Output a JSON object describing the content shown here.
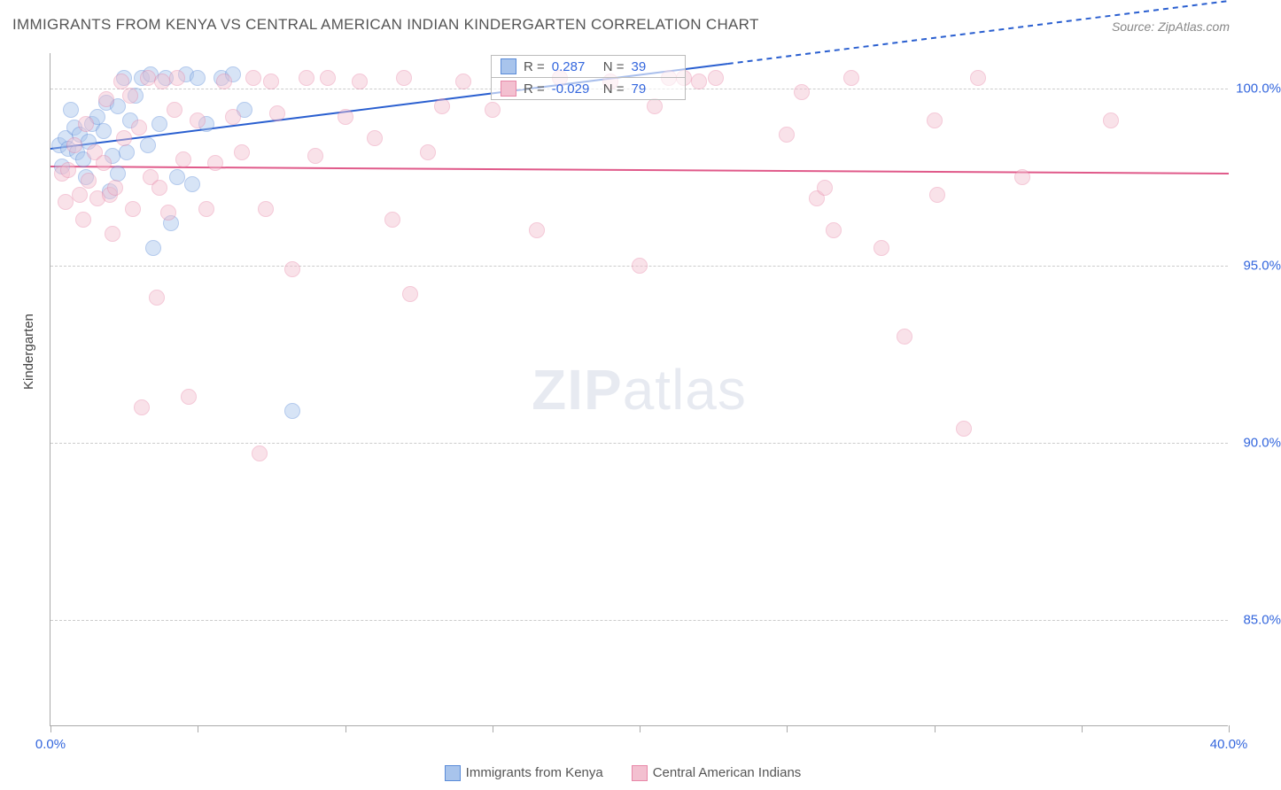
{
  "title": "IMMIGRANTS FROM KENYA VS CENTRAL AMERICAN INDIAN KINDERGARTEN CORRELATION CHART",
  "source": "Source: ZipAtlas.com",
  "ylabel": "Kindergarten",
  "watermark": "ZIPatlas",
  "chart": {
    "type": "scatter",
    "xlim": [
      0,
      40
    ],
    "ylim": [
      82,
      101
    ],
    "x_ticks": [
      0,
      5,
      10,
      15,
      20,
      25,
      30,
      35,
      40
    ],
    "x_tick_labels": {
      "0": "0.0%",
      "40": "40.0%"
    },
    "y_gridlines": [
      85,
      90,
      95,
      100
    ],
    "y_tick_labels": {
      "85": "85.0%",
      "90": "90.0%",
      "95": "95.0%",
      "100": "100.0%"
    },
    "background_color": "#ffffff",
    "grid_color": "#cccccc",
    "axis_color": "#aaaaaa",
    "tick_label_color": "#3366dd",
    "marker_radius": 9,
    "marker_opacity": 0.45,
    "series": [
      {
        "name": "Immigrants from Kenya",
        "color_fill": "#a8c4ec",
        "color_stroke": "#5a8bd8",
        "R": "0.287",
        "N": "39",
        "trend": {
          "x1": 0,
          "y1": 98.3,
          "x2": 23,
          "y2": 100.7,
          "extend_x": 40,
          "color": "#2a5fd0",
          "width": 2
        },
        "points": [
          [
            0.3,
            98.4
          ],
          [
            0.5,
            98.6
          ],
          [
            0.6,
            98.3
          ],
          [
            0.8,
            98.9
          ],
          [
            0.9,
            98.2
          ],
          [
            1.0,
            98.7
          ],
          [
            1.1,
            98.0
          ],
          [
            1.3,
            98.5
          ],
          [
            1.4,
            99.0
          ],
          [
            1.6,
            99.2
          ],
          [
            1.8,
            98.8
          ],
          [
            1.9,
            99.6
          ],
          [
            2.1,
            98.1
          ],
          [
            2.3,
            99.5
          ],
          [
            2.3,
            97.6
          ],
          [
            2.5,
            100.3
          ],
          [
            2.7,
            99.1
          ],
          [
            2.9,
            99.8
          ],
          [
            3.1,
            100.3
          ],
          [
            3.3,
            98.4
          ],
          [
            3.4,
            100.4
          ],
          [
            3.7,
            99.0
          ],
          [
            3.9,
            100.3
          ],
          [
            4.1,
            96.2
          ],
          [
            4.3,
            97.5
          ],
          [
            4.6,
            100.4
          ],
          [
            5.0,
            100.3
          ],
          [
            5.3,
            99.0
          ],
          [
            5.8,
            100.3
          ],
          [
            6.2,
            100.4
          ],
          [
            6.6,
            99.4
          ],
          [
            8.2,
            90.9
          ],
          [
            4.8,
            97.3
          ],
          [
            3.5,
            95.5
          ],
          [
            2.0,
            97.1
          ],
          [
            2.6,
            98.2
          ],
          [
            1.2,
            97.5
          ],
          [
            0.4,
            97.8
          ],
          [
            0.7,
            99.4
          ]
        ]
      },
      {
        "name": "Central American Indians",
        "color_fill": "#f3c0d0",
        "color_stroke": "#e887a8",
        "R": "-0.029",
        "N": "79",
        "trend": {
          "x1": 0,
          "y1": 97.8,
          "x2": 40,
          "y2": 97.6,
          "color": "#e05a8a",
          "width": 2
        },
        "points": [
          [
            0.4,
            97.6
          ],
          [
            0.6,
            97.7
          ],
          [
            0.8,
            98.4
          ],
          [
            1.0,
            97.0
          ],
          [
            1.2,
            99.0
          ],
          [
            1.3,
            97.4
          ],
          [
            1.5,
            98.2
          ],
          [
            1.6,
            96.9
          ],
          [
            1.8,
            97.9
          ],
          [
            1.9,
            99.7
          ],
          [
            2.0,
            97.0
          ],
          [
            2.2,
            97.2
          ],
          [
            2.4,
            100.2
          ],
          [
            2.5,
            98.6
          ],
          [
            2.7,
            99.8
          ],
          [
            2.8,
            96.6
          ],
          [
            3.0,
            98.9
          ],
          [
            3.1,
            91.0
          ],
          [
            3.3,
            100.3
          ],
          [
            3.4,
            97.5
          ],
          [
            3.6,
            94.1
          ],
          [
            3.8,
            100.2
          ],
          [
            4.0,
            96.5
          ],
          [
            4.2,
            99.4
          ],
          [
            4.3,
            100.3
          ],
          [
            4.5,
            98.0
          ],
          [
            4.7,
            91.3
          ],
          [
            5.0,
            99.1
          ],
          [
            5.3,
            96.6
          ],
          [
            5.6,
            97.9
          ],
          [
            5.9,
            100.2
          ],
          [
            6.2,
            99.2
          ],
          [
            6.5,
            98.2
          ],
          [
            6.9,
            100.3
          ],
          [
            7.1,
            89.7
          ],
          [
            7.3,
            96.6
          ],
          [
            7.5,
            100.2
          ],
          [
            7.7,
            99.3
          ],
          [
            8.2,
            94.9
          ],
          [
            8.7,
            100.3
          ],
          [
            9.0,
            98.1
          ],
          [
            9.4,
            100.3
          ],
          [
            10.0,
            99.2
          ],
          [
            10.5,
            100.2
          ],
          [
            11.0,
            98.6
          ],
          [
            11.6,
            96.3
          ],
          [
            12.0,
            100.3
          ],
          [
            12.2,
            94.2
          ],
          [
            12.8,
            98.2
          ],
          [
            13.3,
            99.5
          ],
          [
            14.0,
            100.2
          ],
          [
            15.0,
            99.4
          ],
          [
            16.5,
            96.0
          ],
          [
            17.3,
            100.3
          ],
          [
            19.0,
            100.2
          ],
          [
            20.0,
            95.0
          ],
          [
            20.5,
            99.5
          ],
          [
            21.0,
            100.3
          ],
          [
            21.5,
            100.3
          ],
          [
            22.0,
            100.2
          ],
          [
            22.6,
            100.3
          ],
          [
            25.0,
            98.7
          ],
          [
            25.5,
            99.9
          ],
          [
            26.0,
            96.9
          ],
          [
            26.3,
            97.2
          ],
          [
            26.6,
            96.0
          ],
          [
            27.2,
            100.3
          ],
          [
            28.2,
            95.5
          ],
          [
            29.0,
            93.0
          ],
          [
            30.0,
            99.1
          ],
          [
            30.1,
            97.0
          ],
          [
            31.0,
            90.4
          ],
          [
            31.5,
            100.3
          ],
          [
            33.0,
            97.5
          ],
          [
            36.0,
            99.1
          ],
          [
            1.1,
            96.3
          ],
          [
            0.5,
            96.8
          ],
          [
            2.1,
            95.9
          ],
          [
            3.7,
            97.2
          ]
        ]
      }
    ]
  },
  "legend_bottom": [
    {
      "label": "Immigrants from Kenya",
      "fill": "#a8c4ec",
      "stroke": "#5a8bd8"
    },
    {
      "label": "Central American Indians",
      "fill": "#f3c0d0",
      "stroke": "#e887a8"
    }
  ]
}
